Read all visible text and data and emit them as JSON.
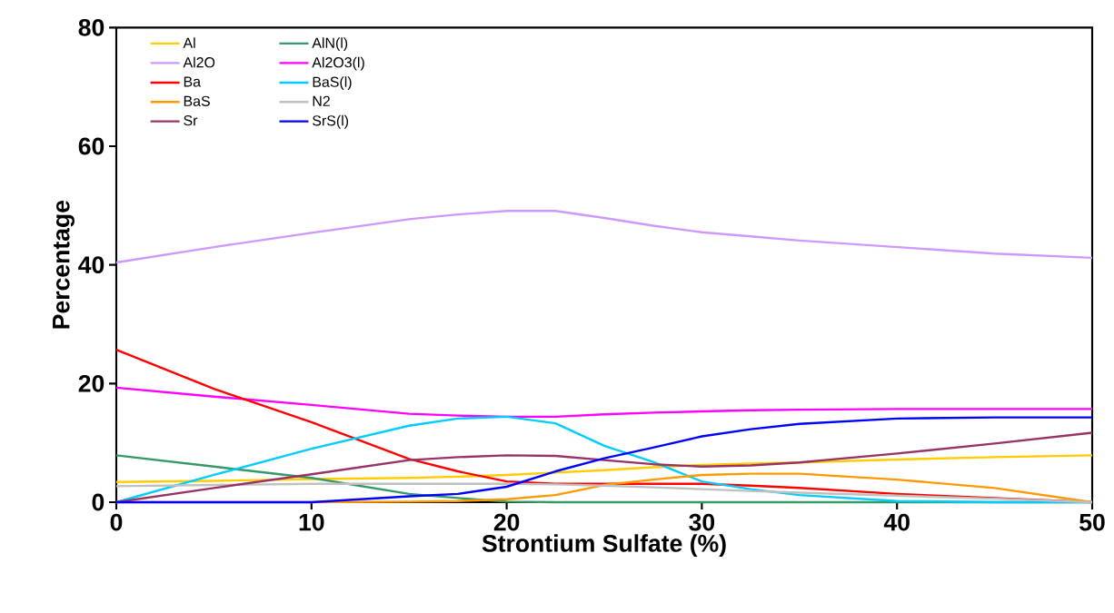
{
  "chart_data": {
    "type": "line",
    "xlabel": "Strontium Sulfate (%)",
    "ylabel": "Percentage",
    "x": [
      0,
      5,
      10,
      15,
      17.5,
      20,
      22.5,
      25,
      27.5,
      30,
      32.5,
      35,
      40,
      45,
      50
    ],
    "xlim": [
      0,
      50
    ],
    "xticks": [
      0,
      10,
      20,
      30,
      40,
      50
    ],
    "ylim": [
      0,
      80
    ],
    "yticks": [
      0,
      20,
      40,
      60,
      80
    ],
    "grid": false,
    "legend": "top left",
    "marker": "none",
    "line_style": "solid",
    "series": [
      {
        "name": "Al",
        "color": "#ffcc00",
        "values": [
          3.4,
          3.6,
          3.9,
          4.1,
          4.3,
          4.6,
          5.0,
          5.4,
          5.9,
          6.3,
          6.5,
          6.7,
          7.2,
          7.6,
          7.9
        ]
      },
      {
        "name": "Al2O",
        "color": "#cc99ff",
        "values": [
          40.4,
          43,
          45.4,
          47.7,
          48.5,
          49.1,
          49.1,
          47.9,
          46.6,
          45.5,
          44.8,
          44.1,
          43,
          41.9,
          41.2
        ]
      },
      {
        "name": "Ba",
        "color": "#ff0000",
        "values": [
          25.7,
          19.1,
          13.5,
          7.3,
          5.2,
          3.5,
          3.1,
          3.1,
          3.1,
          3.1,
          2.8,
          2.4,
          1.4,
          0.7,
          0
        ]
      },
      {
        "name": "BaS",
        "color": "#ff9900",
        "values": [
          0,
          0,
          0,
          0.1,
          0.2,
          0.5,
          1.2,
          2.9,
          3.8,
          4.6,
          4.8,
          4.8,
          3.8,
          2.4,
          0
        ]
      },
      {
        "name": "Sr",
        "color": "#993366",
        "values": [
          0,
          2.4,
          4.7,
          7.1,
          7.6,
          7.9,
          7.8,
          7.1,
          6.4,
          6.0,
          6.2,
          6.7,
          8.2,
          9.9,
          11.7
        ]
      },
      {
        "name": "AlN(l)",
        "color": "#339966",
        "values": [
          7.9,
          6.0,
          4.1,
          1.4,
          0.7,
          0.1,
          0,
          0,
          0,
          0,
          0,
          0,
          0,
          0,
          0
        ]
      },
      {
        "name": "Al2O3(l)",
        "color": "#ff00ff",
        "values": [
          19.3,
          17.8,
          16.4,
          14.9,
          14.6,
          14.4,
          14.4,
          14.8,
          15.1,
          15.3,
          15.5,
          15.6,
          15.7,
          15.7,
          15.7
        ]
      },
      {
        "name": "BaS(l)",
        "color": "#00ccff",
        "values": [
          0,
          4.6,
          9.0,
          12.9,
          14.1,
          14.4,
          13.3,
          9.5,
          6.8,
          3.5,
          2.2,
          1.2,
          0.2,
          0,
          0
        ]
      },
      {
        "name": "N2",
        "color": "#c0c0c0",
        "values": [
          2.7,
          2.9,
          3.1,
          3.1,
          3.1,
          3.1,
          3.0,
          2.8,
          2.5,
          2.2,
          1.9,
          1.6,
          1.1,
          0.6,
          0
        ]
      },
      {
        "name": "SrS(l)",
        "color": "#0000ff",
        "values": [
          0,
          0,
          0,
          1.0,
          1.4,
          2.6,
          5.2,
          7.4,
          9.2,
          11.1,
          12.3,
          13.2,
          14.1,
          14.3,
          14.3
        ]
      }
    ]
  }
}
